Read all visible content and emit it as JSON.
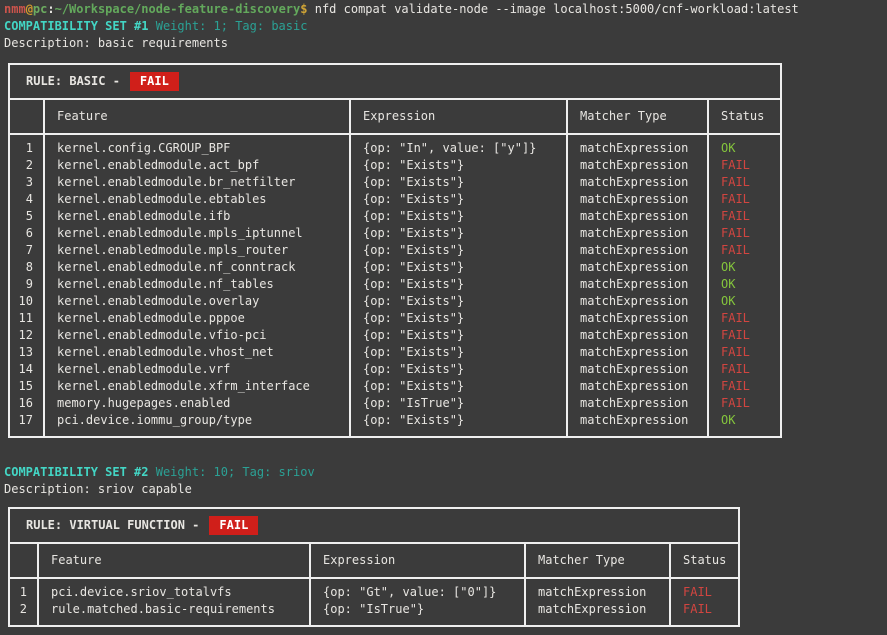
{
  "terminal": {
    "prompt": {
      "user": "nmm",
      "at": "@",
      "host": "pc",
      "separator": ":",
      "path": "~/Workspace/node-feature-discovery",
      "symbol": "$",
      "command": "nfd compat validate-node --image localhost:5000/cnf-workload:latest"
    }
  },
  "colors": {
    "background": "#3b3b3b",
    "foreground": "#e8e6e2",
    "table_border": "#efefef",
    "set_title_cyan": "#43d6c5",
    "set_meta_teal": "#2ba195",
    "status_ok_green": "#84c53c",
    "status_fail_red": "#d24540",
    "fail_badge_background": "#d01f1a",
    "fail_badge_text": "#ffffff",
    "prompt_user_red": "#cc544c",
    "prompt_at_yellow": "#d19a2e",
    "prompt_host_green": "#6cab60",
    "prompt_path_green": "#63a95c",
    "prompt_symbol_yellow": "#d1a535"
  },
  "sets": [
    {
      "title": "COMPATIBILITY SET #1",
      "meta": "Weight: 1; Tag: basic",
      "description": "Description: basic requirements",
      "rule_label": "RULE: BASIC -",
      "rule_status": "FAIL",
      "columns": [
        "",
        "Feature",
        "Expression",
        "Matcher Type",
        "Status"
      ],
      "rows": [
        {
          "index": "1",
          "feature": "kernel.config.CGROUP_BPF",
          "expression": "{op: \"In\", value: [\"y\"]}",
          "matcher": "matchExpression",
          "status": "OK"
        },
        {
          "index": "2",
          "feature": "kernel.enabledmodule.act_bpf",
          "expression": "{op: \"Exists\"}",
          "matcher": "matchExpression",
          "status": "FAIL"
        },
        {
          "index": "3",
          "feature": "kernel.enabledmodule.br_netfilter",
          "expression": "{op: \"Exists\"}",
          "matcher": "matchExpression",
          "status": "FAIL"
        },
        {
          "index": "4",
          "feature": "kernel.enabledmodule.ebtables",
          "expression": "{op: \"Exists\"}",
          "matcher": "matchExpression",
          "status": "FAIL"
        },
        {
          "index": "5",
          "feature": "kernel.enabledmodule.ifb",
          "expression": "{op: \"Exists\"}",
          "matcher": "matchExpression",
          "status": "FAIL"
        },
        {
          "index": "6",
          "feature": "kernel.enabledmodule.mpls_iptunnel",
          "expression": "{op: \"Exists\"}",
          "matcher": "matchExpression",
          "status": "FAIL"
        },
        {
          "index": "7",
          "feature": "kernel.enabledmodule.mpls_router",
          "expression": "{op: \"Exists\"}",
          "matcher": "matchExpression",
          "status": "FAIL"
        },
        {
          "index": "8",
          "feature": "kernel.enabledmodule.nf_conntrack",
          "expression": "{op: \"Exists\"}",
          "matcher": "matchExpression",
          "status": "OK"
        },
        {
          "index": "9",
          "feature": "kernel.enabledmodule.nf_tables",
          "expression": "{op: \"Exists\"}",
          "matcher": "matchExpression",
          "status": "OK"
        },
        {
          "index": "10",
          "feature": "kernel.enabledmodule.overlay",
          "expression": "{op: \"Exists\"}",
          "matcher": "matchExpression",
          "status": "OK"
        },
        {
          "index": "11",
          "feature": "kernel.enabledmodule.pppoe",
          "expression": "{op: \"Exists\"}",
          "matcher": "matchExpression",
          "status": "FAIL"
        },
        {
          "index": "12",
          "feature": "kernel.enabledmodule.vfio-pci",
          "expression": "{op: \"Exists\"}",
          "matcher": "matchExpression",
          "status": "FAIL"
        },
        {
          "index": "13",
          "feature": "kernel.enabledmodule.vhost_net",
          "expression": "{op: \"Exists\"}",
          "matcher": "matchExpression",
          "status": "FAIL"
        },
        {
          "index": "14",
          "feature": "kernel.enabledmodule.vrf",
          "expression": "{op: \"Exists\"}",
          "matcher": "matchExpression",
          "status": "FAIL"
        },
        {
          "index": "15",
          "feature": "kernel.enabledmodule.xfrm_interface",
          "expression": "{op: \"Exists\"}",
          "matcher": "matchExpression",
          "status": "FAIL"
        },
        {
          "index": "16",
          "feature": "memory.hugepages.enabled",
          "expression": "{op: \"IsTrue\"}",
          "matcher": "matchExpression",
          "status": "FAIL"
        },
        {
          "index": "17",
          "feature": "pci.device.iommu_group/type",
          "expression": "{op: \"Exists\"}",
          "matcher": "matchExpression",
          "status": "OK"
        }
      ]
    },
    {
      "title": "COMPATIBILITY SET #2",
      "meta": "Weight: 10; Tag: sriov",
      "description": "Description: sriov capable",
      "rule_label": "RULE: VIRTUAL FUNCTION -",
      "rule_status": "FAIL",
      "columns": [
        "",
        "Feature",
        "Expression",
        "Matcher Type",
        "Status"
      ],
      "rows": [
        {
          "index": "1",
          "feature": "pci.device.sriov_totalvfs",
          "expression": "{op: \"Gt\", value: [\"0\"]}",
          "matcher": "matchExpression",
          "status": "FAIL"
        },
        {
          "index": "2",
          "feature": "rule.matched.basic-requirements",
          "expression": "{op: \"IsTrue\"}",
          "matcher": "matchExpression",
          "status": "FAIL"
        }
      ]
    }
  ]
}
